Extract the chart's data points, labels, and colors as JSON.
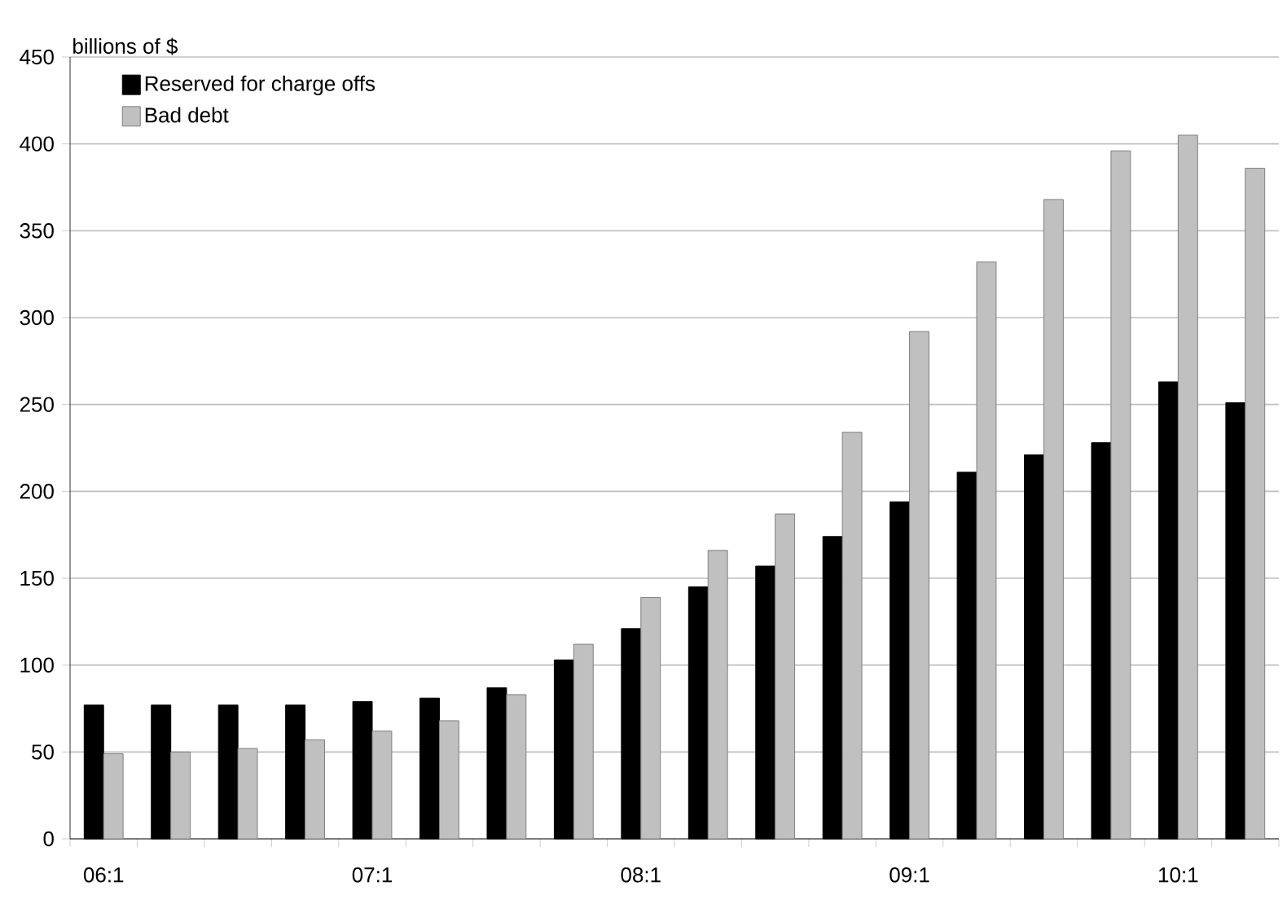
{
  "chart_data": {
    "type": "bar",
    "ylabel": "billions of $",
    "categories": [
      "06:1",
      null,
      null,
      null,
      "07:1",
      null,
      null,
      null,
      "08:1",
      null,
      null,
      null,
      "09:1",
      null,
      null,
      null,
      "10:1",
      null
    ],
    "series": [
      {
        "name": "Reserved for charge offs",
        "color": "#000000",
        "values": [
          77,
          77,
          77,
          77,
          79,
          81,
          87,
          103,
          121,
          145,
          157,
          174,
          194,
          211,
          221,
          228,
          263,
          251
        ]
      },
      {
        "name": "Bad debt",
        "color": "#c0c0c0",
        "values": [
          49,
          50,
          52,
          57,
          62,
          68,
          83,
          112,
          139,
          166,
          187,
          234,
          292,
          332,
          368,
          396,
          405,
          386
        ]
      }
    ],
    "ylim": [
      0,
      450
    ],
    "yticks": [
      0,
      50,
      100,
      150,
      200,
      250,
      300,
      350,
      400,
      450
    ],
    "grid": "y",
    "legend": "top left"
  }
}
